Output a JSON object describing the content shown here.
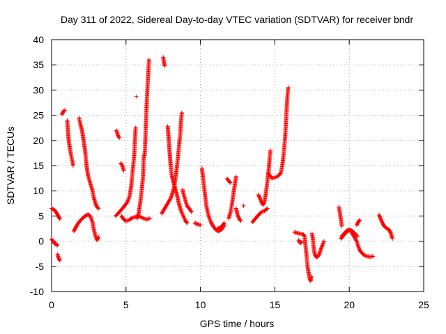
{
  "chart_data": {
    "type": "scatter",
    "title": "Day 311 of 2022, Sidereal Day-to-day VTEC variation (SDTVAR) for receiver bndr",
    "xlabel": "GPS time / hours",
    "ylabel": "SDTVAR / TECUs",
    "xlim": [
      0,
      25
    ],
    "ylim": [
      -10,
      40
    ],
    "xticks": [
      0,
      5,
      10,
      15,
      20,
      25
    ],
    "xtick_labels": [
      "0",
      "5",
      "10",
      "15",
      "20",
      "25"
    ],
    "yticks": [
      -10,
      -5,
      0,
      5,
      10,
      15,
      20,
      25,
      30,
      35,
      40
    ],
    "ytick_labels": [
      "-10",
      "-5",
      "0",
      "5",
      "10",
      "15",
      "20",
      "25",
      "30",
      "35",
      "40"
    ],
    "grid": true,
    "marker": "+",
    "color": "#ff0000",
    "segments": [
      [
        [
          0.0,
          6.5
        ],
        [
          0.15,
          6.3
        ],
        [
          0.3,
          5.8
        ],
        [
          0.45,
          5.0
        ],
        [
          0.55,
          4.4
        ]
      ],
      [
        [
          0.0,
          0.4
        ],
        [
          0.1,
          0.0
        ],
        [
          0.2,
          -0.5
        ],
        [
          0.3,
          -0.6
        ],
        [
          0.4,
          -0.8
        ]
      ],
      [
        [
          0.4,
          -2.6
        ],
        [
          0.45,
          -3.2
        ],
        [
          0.55,
          -3.8
        ]
      ],
      [
        [
          0.7,
          25.2
        ],
        [
          0.8,
          25.8
        ],
        [
          0.9,
          26.0
        ]
      ],
      [
        [
          1.05,
          24.0
        ],
        [
          1.1,
          22.0
        ],
        [
          1.15,
          20.0
        ],
        [
          1.25,
          18.0
        ],
        [
          1.35,
          16.5
        ],
        [
          1.45,
          15.0
        ]
      ],
      [
        [
          1.5,
          2.0
        ],
        [
          1.6,
          2.6
        ],
        [
          1.75,
          3.4
        ],
        [
          1.9,
          4.0
        ],
        [
          2.1,
          4.6
        ],
        [
          2.3,
          5.1
        ],
        [
          2.45,
          5.3
        ],
        [
          2.6,
          5.0
        ],
        [
          2.75,
          3.8
        ],
        [
          2.85,
          2.2
        ],
        [
          2.95,
          1.0
        ],
        [
          3.05,
          0.2
        ],
        [
          3.15,
          0.8
        ]
      ],
      [
        [
          1.85,
          24.5
        ],
        [
          1.95,
          23.0
        ],
        [
          2.05,
          22.0
        ],
        [
          2.15,
          20.0
        ],
        [
          2.25,
          18.0
        ],
        [
          2.35,
          15.0
        ],
        [
          2.45,
          13.0
        ],
        [
          2.55,
          12.0
        ],
        [
          2.65,
          11.0
        ],
        [
          2.75,
          10.0
        ],
        [
          2.85,
          8.5
        ],
        [
          2.95,
          7.5
        ],
        [
          3.05,
          6.8
        ],
        [
          3.15,
          6.5
        ]
      ],
      [
        [
          4.3,
          5.0
        ],
        [
          4.5,
          5.6
        ],
        [
          4.7,
          6.3
        ],
        [
          4.9,
          7.0
        ],
        [
          5.1,
          7.8
        ],
        [
          5.25,
          9.0
        ],
        [
          5.35,
          11.0
        ],
        [
          5.45,
          14.0
        ],
        [
          5.55,
          17.0
        ],
        [
          5.6,
          20.0
        ],
        [
          5.65,
          22.5
        ]
      ],
      [
        [
          4.35,
          22.0
        ],
        [
          4.4,
          21.6
        ],
        [
          4.45,
          21.0
        ],
        [
          4.55,
          20.5
        ]
      ],
      [
        [
          4.65,
          15.5
        ],
        [
          4.75,
          15.0
        ],
        [
          4.85,
          14.0
        ]
      ],
      [
        [
          4.7,
          5.0
        ],
        [
          4.8,
          4.5
        ],
        [
          4.9,
          4.2
        ],
        [
          5.0,
          4.0
        ],
        [
          5.2,
          4.2
        ],
        [
          5.4,
          4.6
        ],
        [
          5.6,
          4.8
        ],
        [
          5.8,
          5.0
        ],
        [
          6.0,
          4.8
        ],
        [
          6.2,
          4.5
        ],
        [
          6.4,
          4.3
        ],
        [
          6.6,
          4.5
        ]
      ],
      [
        [
          5.7,
          28.7
        ]
      ],
      [
        [
          5.75,
          4.5
        ],
        [
          5.85,
          5.5
        ],
        [
          5.95,
          7.5
        ],
        [
          6.05,
          10.0
        ],
        [
          6.15,
          13.0
        ],
        [
          6.2,
          17.0
        ]
      ],
      [
        [
          6.25,
          17.0
        ],
        [
          6.3,
          20.0
        ],
        [
          6.35,
          24.0
        ],
        [
          6.4,
          28.0
        ],
        [
          6.45,
          31.0
        ],
        [
          6.5,
          33.5
        ],
        [
          6.55,
          36.0
        ]
      ],
      [
        [
          7.5,
          36.5
        ],
        [
          7.55,
          35.5
        ],
        [
          7.6,
          34.8
        ]
      ],
      [
        [
          7.4,
          5.5
        ],
        [
          7.6,
          6.5
        ],
        [
          7.8,
          7.5
        ],
        [
          8.0,
          8.5
        ],
        [
          8.15,
          9.8
        ],
        [
          8.25,
          11.0
        ],
        [
          8.35,
          13.0
        ],
        [
          8.45,
          15.5
        ],
        [
          8.55,
          18.5
        ],
        [
          8.65,
          21.5
        ],
        [
          8.7,
          24.0
        ],
        [
          8.75,
          25.5
        ]
      ],
      [
        [
          7.8,
          22.8
        ],
        [
          7.85,
          21.0
        ],
        [
          7.9,
          19.0
        ],
        [
          7.95,
          17.0
        ],
        [
          8.0,
          15.0
        ],
        [
          8.05,
          13.5
        ],
        [
          8.15,
          12.0
        ],
        [
          8.25,
          11.0
        ],
        [
          8.4,
          9.5
        ],
        [
          8.55,
          7.5
        ],
        [
          8.7,
          6.0
        ],
        [
          8.85,
          5.0
        ],
        [
          9.0,
          4.0
        ],
        [
          9.1,
          3.6
        ]
      ],
      [
        [
          8.8,
          10.2
        ],
        [
          8.9,
          9.0
        ],
        [
          9.0,
          8.0
        ],
        [
          9.1,
          7.0
        ],
        [
          9.25,
          6.5
        ],
        [
          9.4,
          5.8
        ]
      ],
      [
        [
          9.6,
          3.6
        ],
        [
          9.8,
          3.4
        ],
        [
          10.0,
          3.2
        ]
      ],
      [
        [
          10.1,
          14.5
        ],
        [
          10.2,
          12.0
        ],
        [
          10.3,
          9.5
        ],
        [
          10.4,
          7.0
        ],
        [
          10.55,
          5.0
        ],
        [
          10.7,
          3.8
        ],
        [
          10.85,
          3.0
        ],
        [
          11.0,
          2.4
        ],
        [
          11.15,
          2.0
        ],
        [
          11.3,
          2.1
        ],
        [
          11.45,
          2.4
        ],
        [
          11.6,
          3.2
        ]
      ],
      [
        [
          11.15,
          2.5
        ],
        [
          11.3,
          2.6
        ],
        [
          11.45,
          3.0
        ],
        [
          11.6,
          3.6
        ]
      ],
      [
        [
          11.8,
          12.4
        ],
        [
          11.9,
          12.0
        ],
        [
          12.0,
          11.6
        ]
      ],
      [
        [
          11.9,
          4.5
        ],
        [
          12.0,
          5.5
        ],
        [
          12.1,
          7.0
        ],
        [
          12.2,
          9.0
        ],
        [
          12.3,
          11.0
        ],
        [
          12.4,
          12.8
        ]
      ],
      [
        [
          12.4,
          6.5
        ],
        [
          12.5,
          5.2
        ],
        [
          12.6,
          4.5
        ],
        [
          12.7,
          4.0
        ]
      ],
      [
        [
          12.9,
          7.0
        ]
      ],
      [
        [
          13.5,
          3.8
        ],
        [
          13.7,
          4.5
        ],
        [
          13.9,
          5.2
        ],
        [
          14.1,
          5.8
        ],
        [
          14.3,
          6.0
        ],
        [
          14.5,
          6.5
        ]
      ],
      [
        [
          13.9,
          9.2
        ],
        [
          14.0,
          8.5
        ],
        [
          14.1,
          7.8
        ],
        [
          14.2,
          7.2
        ],
        [
          14.3,
          7.8
        ],
        [
          14.4,
          9.5
        ],
        [
          14.5,
          12.0
        ],
        [
          14.6,
          14.5
        ],
        [
          14.65,
          16.5
        ],
        [
          14.7,
          18.0
        ]
      ],
      [
        [
          14.55,
          13.5
        ],
        [
          14.8,
          12.5
        ],
        [
          15.0,
          12.6
        ],
        [
          15.2,
          12.9
        ],
        [
          15.4,
          13.5
        ],
        [
          15.5,
          15.0
        ],
        [
          15.6,
          17.5
        ],
        [
          15.7,
          21.0
        ],
        [
          15.75,
          24.0
        ],
        [
          15.8,
          26.5
        ],
        [
          15.85,
          29.0
        ],
        [
          15.9,
          30.5
        ]
      ],
      [
        [
          16.3,
          1.8
        ],
        [
          16.5,
          1.6
        ],
        [
          16.7,
          1.5
        ],
        [
          16.9,
          1.4
        ],
        [
          17.0,
          1.0
        ],
        [
          17.05,
          -0.5
        ],
        [
          17.1,
          -2.0
        ],
        [
          17.15,
          -3.5
        ],
        [
          17.2,
          -5.0
        ],
        [
          17.25,
          -6.0
        ],
        [
          17.3,
          -6.8
        ],
        [
          17.35,
          -7.6
        ],
        [
          17.4,
          -7.9
        ],
        [
          17.45,
          -7.0
        ]
      ],
      [
        [
          16.6,
          0.2
        ],
        [
          16.7,
          -0.4
        ],
        [
          16.8,
          -0.2
        ]
      ],
      [
        [
          17.5,
          1.5
        ],
        [
          17.55,
          0.5
        ],
        [
          17.6,
          -1.0
        ],
        [
          17.65,
          -2.0
        ],
        [
          17.7,
          -2.8
        ],
        [
          17.8,
          -3.2
        ],
        [
          17.9,
          -3.0
        ],
        [
          18.0,
          -2.5
        ],
        [
          18.1,
          -1.5
        ],
        [
          18.2,
          -0.8
        ],
        [
          18.3,
          0.0
        ]
      ],
      [
        [
          19.3,
          6.8
        ],
        [
          19.35,
          6.0
        ],
        [
          19.4,
          5.0
        ],
        [
          19.45,
          4.0
        ],
        [
          19.5,
          3.0
        ]
      ],
      [
        [
          19.45,
          0.5
        ],
        [
          19.55,
          0.9
        ],
        [
          19.65,
          1.3
        ],
        [
          19.75,
          1.6
        ],
        [
          19.85,
          1.9
        ],
        [
          19.95,
          2.1
        ],
        [
          20.05,
          2.2
        ],
        [
          20.15,
          2.1
        ],
        [
          20.25,
          1.9
        ],
        [
          20.35,
          1.6
        ],
        [
          20.45,
          1.3
        ],
        [
          20.55,
          1.0
        ]
      ],
      [
        [
          19.5,
          1.0
        ],
        [
          19.65,
          1.5
        ],
        [
          19.8,
          2.0
        ],
        [
          19.95,
          2.3
        ],
        [
          20.1,
          2.0
        ],
        [
          20.2,
          1.5
        ],
        [
          20.3,
          1.0
        ],
        [
          20.4,
          0.5
        ],
        [
          20.5,
          0.0
        ],
        [
          20.6,
          -1.0
        ],
        [
          20.7,
          -1.8
        ],
        [
          20.8,
          -2.2
        ],
        [
          20.9,
          -2.5
        ],
        [
          21.0,
          -2.8
        ],
        [
          21.2,
          -3.0
        ],
        [
          21.4,
          -3.1
        ],
        [
          21.6,
          -3.0
        ]
      ],
      [
        [
          20.5,
          3.2
        ],
        [
          20.6,
          3.8
        ],
        [
          20.7,
          4.2
        ]
      ],
      [
        [
          22.0,
          5.2
        ],
        [
          22.1,
          4.5
        ],
        [
          22.2,
          3.8
        ],
        [
          22.3,
          3.2
        ],
        [
          22.4,
          2.8
        ],
        [
          22.55,
          2.5
        ],
        [
          22.7,
          2.2
        ],
        [
          22.8,
          1.5
        ],
        [
          22.9,
          0.5
        ]
      ]
    ]
  }
}
